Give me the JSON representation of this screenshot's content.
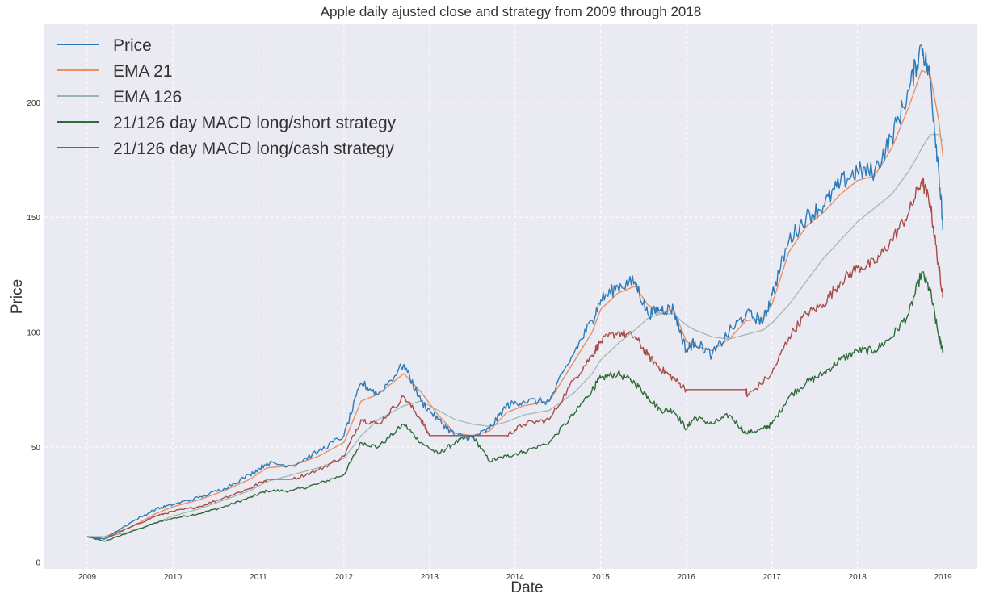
{
  "chart_data": {
    "type": "line",
    "title": "Apple daily ajusted close and strategy from 2009 through 2018",
    "xlabel": "Date",
    "ylabel": "Price",
    "xlim": [
      2008.5,
      2019.4
    ],
    "ylim": [
      -3,
      234
    ],
    "grid": true,
    "legend_placement": "top-left",
    "x_ticks": [
      2009,
      2010,
      2011,
      2012,
      2013,
      2014,
      2015,
      2016,
      2017,
      2018,
      2019
    ],
    "x_tick_labels": [
      "2009",
      "2010",
      "2011",
      "2012",
      "2013",
      "2014",
      "2015",
      "2016",
      "2017",
      "2018",
      "2019"
    ],
    "y_ticks": [
      0,
      50,
      100,
      150,
      200
    ],
    "y_tick_labels": [
      "0",
      "50",
      "100",
      "150",
      "200"
    ],
    "colors": {
      "background": "#eaeaf2",
      "grid": "#ffffff"
    },
    "series": [
      {
        "name": "Price",
        "color": "#2b7bb9",
        "x": [
          2009.0,
          2009.2,
          2009.5,
          2009.8,
          2010.0,
          2010.3,
          2010.6,
          2010.9,
          2011.1,
          2011.4,
          2011.7,
          2012.0,
          2012.2,
          2012.4,
          2012.7,
          2012.9,
          2013.1,
          2013.3,
          2013.5,
          2013.7,
          2013.9,
          2014.1,
          2014.4,
          2014.7,
          2014.9,
          2015.0,
          2015.2,
          2015.4,
          2015.55,
          2015.7,
          2015.85,
          2016.0,
          2016.1,
          2016.3,
          2016.5,
          2016.7,
          2016.9,
          2017.0,
          2017.2,
          2017.4,
          2017.6,
          2017.8,
          2018.0,
          2018.2,
          2018.4,
          2018.6,
          2018.75,
          2018.85,
          2018.95,
          2019.0
        ],
        "values": [
          11,
          10,
          17,
          23,
          25,
          28,
          32,
          38,
          43,
          42,
          48,
          55,
          78,
          73,
          86,
          70,
          62,
          55,
          54,
          58,
          68,
          70,
          70,
          92,
          105,
          114,
          120,
          122,
          108,
          110,
          110,
          92,
          96,
          90,
          100,
          108,
          105,
          116,
          140,
          150,
          155,
          165,
          170,
          170,
          185,
          205,
          225,
          210,
          170,
          145
        ]
      },
      {
        "name": "EMA 21",
        "color": "#e88f65",
        "x": [
          2009.0,
          2009.2,
          2009.5,
          2009.8,
          2010.0,
          2010.3,
          2010.6,
          2010.9,
          2011.1,
          2011.4,
          2011.7,
          2012.0,
          2012.2,
          2012.4,
          2012.7,
          2012.9,
          2013.1,
          2013.3,
          2013.5,
          2013.7,
          2013.9,
          2014.1,
          2014.4,
          2014.7,
          2014.9,
          2015.0,
          2015.2,
          2015.4,
          2015.55,
          2015.7,
          2015.85,
          2016.0,
          2016.1,
          2016.3,
          2016.5,
          2016.7,
          2016.9,
          2017.0,
          2017.2,
          2017.4,
          2017.6,
          2017.8,
          2018.0,
          2018.2,
          2018.4,
          2018.6,
          2018.75,
          2018.85,
          2018.95,
          2019.0
        ],
        "values": [
          11,
          11,
          15,
          21,
          24,
          27,
          31,
          36,
          41,
          42,
          46,
          52,
          70,
          73,
          82,
          74,
          64,
          56,
          55,
          57,
          65,
          68,
          70,
          88,
          100,
          110,
          117,
          120,
          112,
          108,
          110,
          96,
          94,
          92,
          97,
          105,
          106,
          112,
          135,
          146,
          152,
          160,
          166,
          168,
          180,
          198,
          214,
          212,
          192,
          176
        ]
      },
      {
        "name": "EMA 126",
        "color": "#9bb5ad",
        "x": [
          2009.0,
          2009.2,
          2009.5,
          2009.8,
          2010.0,
          2010.3,
          2010.6,
          2010.9,
          2011.1,
          2011.4,
          2011.7,
          2012.0,
          2012.2,
          2012.4,
          2012.7,
          2012.9,
          2013.1,
          2013.3,
          2013.5,
          2013.7,
          2013.9,
          2014.1,
          2014.4,
          2014.7,
          2014.9,
          2015.0,
          2015.2,
          2015.4,
          2015.55,
          2015.7,
          2015.85,
          2016.0,
          2016.1,
          2016.3,
          2016.5,
          2016.7,
          2016.9,
          2017.0,
          2017.2,
          2017.4,
          2017.6,
          2017.8,
          2018.0,
          2018.2,
          2018.4,
          2018.6,
          2018.75,
          2018.85,
          2018.95,
          2019.0
        ],
        "values": [
          11,
          11,
          13,
          17,
          20,
          23,
          27,
          31,
          35,
          38,
          41,
          45,
          55,
          62,
          68,
          70,
          66,
          62,
          60,
          59,
          61,
          64,
          66,
          74,
          82,
          88,
          95,
          101,
          106,
          108,
          108,
          103,
          101,
          98,
          97,
          99,
          101,
          104,
          112,
          122,
          132,
          140,
          148,
          154,
          160,
          170,
          180,
          186,
          186,
          183
        ]
      },
      {
        "name": "21/126 day MACD long/short strategy",
        "color": "#2f6b37",
        "x": [
          2009.0,
          2009.2,
          2009.5,
          2009.8,
          2010.0,
          2010.3,
          2010.6,
          2010.9,
          2011.1,
          2011.4,
          2011.7,
          2012.0,
          2012.2,
          2012.4,
          2012.7,
          2012.9,
          2013.1,
          2013.3,
          2013.5,
          2013.7,
          2013.9,
          2014.1,
          2014.4,
          2014.7,
          2014.9,
          2015.0,
          2015.2,
          2015.4,
          2015.55,
          2015.7,
          2015.85,
          2016.0,
          2016.1,
          2016.3,
          2016.5,
          2016.7,
          2016.9,
          2017.0,
          2017.2,
          2017.4,
          2017.6,
          2017.8,
          2018.0,
          2018.2,
          2018.4,
          2018.6,
          2018.75,
          2018.85,
          2018.95,
          2019.0
        ],
        "values": [
          11,
          9,
          13,
          17,
          19,
          21,
          24,
          28,
          31,
          31,
          34,
          38,
          52,
          50,
          60,
          52,
          47,
          52,
          55,
          44,
          46,
          48,
          52,
          65,
          75,
          80,
          82,
          78,
          72,
          66,
          66,
          58,
          63,
          60,
          64,
          56,
          58,
          60,
          72,
          78,
          82,
          88,
          92,
          92,
          98,
          108,
          126,
          118,
          98,
          92
        ]
      },
      {
        "name": "21/126 day MACD long/cash strategy",
        "color": "#a84c45",
        "x": [
          2009.0,
          2009.2,
          2009.5,
          2009.8,
          2010.0,
          2010.3,
          2010.6,
          2010.9,
          2011.1,
          2011.4,
          2011.7,
          2012.0,
          2012.2,
          2012.4,
          2012.7,
          2012.9,
          2013.0,
          2013.3,
          2013.5,
          2013.7,
          2013.9,
          2014.1,
          2014.4,
          2014.7,
          2014.9,
          2015.0,
          2015.2,
          2015.4,
          2015.55,
          2015.7,
          2015.85,
          2016.0,
          2016.1,
          2016.3,
          2016.5,
          2016.7,
          2016.71,
          2017.0,
          2017.2,
          2017.4,
          2017.6,
          2017.8,
          2018.0,
          2018.2,
          2018.4,
          2018.6,
          2018.75,
          2018.85,
          2018.95,
          2019.0
        ],
        "values": [
          11,
          10,
          15,
          20,
          22,
          24,
          28,
          32,
          36,
          36,
          40,
          46,
          62,
          60,
          72,
          62,
          55,
          55,
          55,
          55,
          55,
          60,
          62,
          80,
          90,
          96,
          100,
          98,
          90,
          84,
          80,
          75,
          75,
          75,
          75,
          75,
          72,
          82,
          98,
          108,
          112,
          122,
          128,
          130,
          140,
          152,
          166,
          156,
          128,
          116
        ]
      }
    ]
  }
}
